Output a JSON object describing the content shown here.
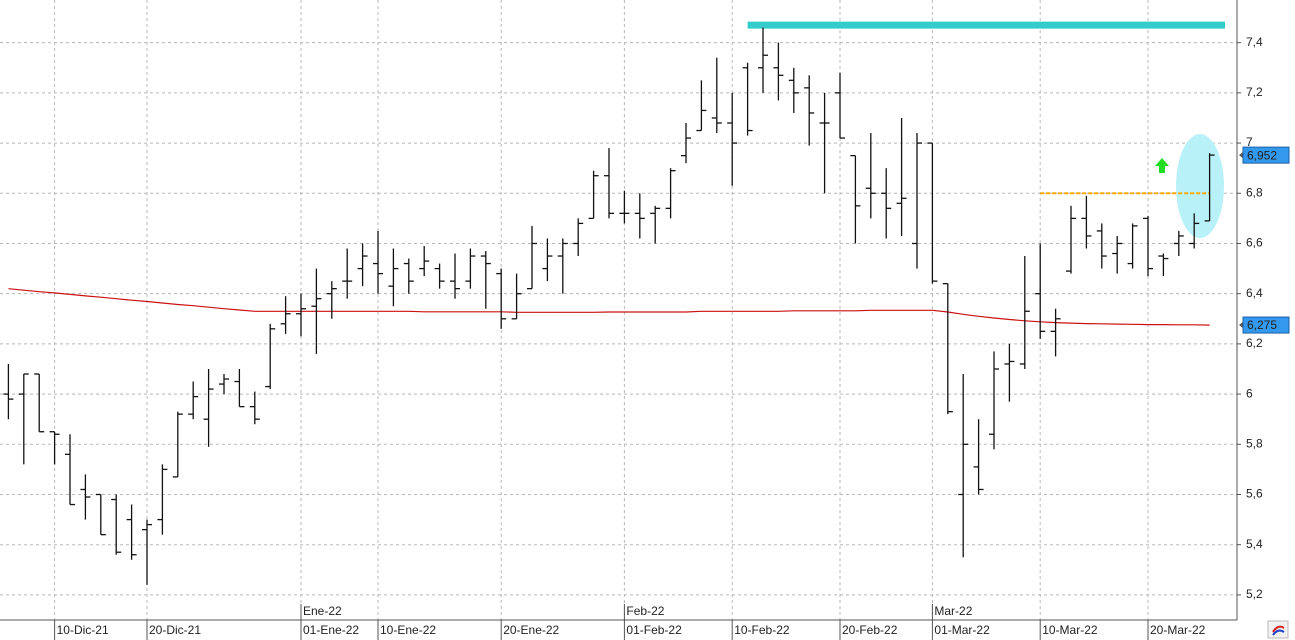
{
  "chart_data": {
    "type": "ohlc",
    "color": "#111111",
    "x": [
      "2021-12-07",
      "2021-12-08",
      "2021-12-09",
      "2021-12-10",
      "2021-12-13",
      "2021-12-14",
      "2021-12-15",
      "2021-12-16",
      "2021-12-17",
      "2021-12-20",
      "2021-12-21",
      "2021-12-22",
      "2021-12-23",
      "2021-12-24",
      "2021-12-27",
      "2021-12-28",
      "2021-12-29",
      "2021-12-30",
      "2021-12-31",
      "2022-01-03",
      "2022-01-04",
      "2022-01-05",
      "2022-01-06",
      "2022-01-07",
      "2022-01-10",
      "2022-01-11",
      "2022-01-12",
      "2022-01-13",
      "2022-01-14",
      "2022-01-17",
      "2022-01-18",
      "2022-01-19",
      "2022-01-20",
      "2022-01-21",
      "2022-01-24",
      "2022-01-25",
      "2022-01-26",
      "2022-01-27",
      "2022-01-28",
      "2022-01-31",
      "2022-02-01",
      "2022-02-02",
      "2022-02-03",
      "2022-02-04",
      "2022-02-07",
      "2022-02-08",
      "2022-02-09",
      "2022-02-10",
      "2022-02-11",
      "2022-02-14",
      "2022-02-15",
      "2022-02-16",
      "2022-02-17",
      "2022-02-18",
      "2022-02-21",
      "2022-02-22",
      "2022-02-23",
      "2022-02-24",
      "2022-02-25",
      "2022-02-28",
      "2022-03-01",
      "2022-03-02",
      "2022-03-03",
      "2022-03-04",
      "2022-03-07",
      "2022-03-08",
      "2022-03-09",
      "2022-03-10",
      "2022-03-11",
      "2022-03-14",
      "2022-03-15",
      "2022-03-16",
      "2022-03-17",
      "2022-03-18",
      "2022-03-21",
      "2022-03-22",
      "2022-03-23",
      "2022-03-24",
      "2022-03-25"
    ],
    "open": [
      6.0,
      6.0,
      6.08,
      5.85,
      5.76,
      5.62,
      5.6,
      5.58,
      5.5,
      5.46,
      5.5,
      5.67,
      5.92,
      5.9,
      6.04,
      6.05,
      5.95,
      6.03,
      6.28,
      6.32,
      6.35,
      6.4,
      6.45,
      6.5,
      6.52,
      6.43,
      6.52,
      6.5,
      6.5,
      6.45,
      6.45,
      6.55,
      6.48,
      6.3,
      6.42,
      6.5,
      6.55,
      6.6,
      6.7,
      6.87,
      6.72,
      6.72,
      6.72,
      6.74,
      6.95,
      7.05,
      7.1,
      7.08,
      7.3,
      7.3,
      7.3,
      7.25,
      7.22,
      7.08,
      7.2,
      6.95,
      6.82,
      6.8,
      6.76,
      6.6,
      7.0,
      6.44,
      5.6,
      5.71,
      5.84,
      6.12,
      6.12,
      6.4,
      6.25,
      6.49,
      6.7,
      6.65,
      6.56,
      6.52,
      6.7,
      6.55,
      6.6,
      6.6,
      6.69
    ],
    "high": [
      6.12,
      6.08,
      6.08,
      5.85,
      5.84,
      5.68,
      5.6,
      5.6,
      5.56,
      5.5,
      5.72,
      5.93,
      6.05,
      6.1,
      6.08,
      6.1,
      6.01,
      6.28,
      6.39,
      6.4,
      6.5,
      6.45,
      6.58,
      6.6,
      6.65,
      6.58,
      6.54,
      6.59,
      6.52,
      6.56,
      6.58,
      6.57,
      6.5,
      6.48,
      6.67,
      6.62,
      6.62,
      6.7,
      6.89,
      6.98,
      6.81,
      6.8,
      6.75,
      6.9,
      7.08,
      7.25,
      7.34,
      7.2,
      7.32,
      7.46,
      7.4,
      7.3,
      7.27,
      7.2,
      7.28,
      6.95,
      7.04,
      6.9,
      7.1,
      7.04,
      7.0,
      6.44,
      6.08,
      5.9,
      6.17,
      6.2,
      6.55,
      6.6,
      6.34,
      6.75,
      6.79,
      6.68,
      6.63,
      6.68,
      6.71,
      6.56,
      6.65,
      6.72,
      6.96
    ],
    "low": [
      5.9,
      5.72,
      5.85,
      5.72,
      5.56,
      5.5,
      5.44,
      5.36,
      5.34,
      5.24,
      5.44,
      5.67,
      5.9,
      5.79,
      6.0,
      5.95,
      5.88,
      6.02,
      6.24,
      6.23,
      6.16,
      6.3,
      6.38,
      6.43,
      6.4,
      6.35,
      6.4,
      6.47,
      6.42,
      6.38,
      6.42,
      6.34,
      6.26,
      6.3,
      6.42,
      6.45,
      6.4,
      6.55,
      6.7,
      6.7,
      6.68,
      6.62,
      6.6,
      6.7,
      6.92,
      7.05,
      7.04,
      6.83,
      7.03,
      7.2,
      7.17,
      7.12,
      6.99,
      6.8,
      7.02,
      6.6,
      6.7,
      6.62,
      6.63,
      6.5,
      6.44,
      5.92,
      5.35,
      5.6,
      5.78,
      5.97,
      6.1,
      6.22,
      6.15,
      6.48,
      6.58,
      6.5,
      6.48,
      6.5,
      6.47,
      6.47,
      6.55,
      6.58,
      6.69
    ],
    "close": [
      5.98,
      6.08,
      5.85,
      5.84,
      5.56,
      5.59,
      5.44,
      5.37,
      5.36,
      5.48,
      5.7,
      5.92,
      5.99,
      6.02,
      6.06,
      5.95,
      5.9,
      6.26,
      6.32,
      6.34,
      6.38,
      6.42,
      6.45,
      6.55,
      6.48,
      6.5,
      6.45,
      6.53,
      6.45,
      6.42,
      6.55,
      6.52,
      6.3,
      6.4,
      6.6,
      6.55,
      6.6,
      6.68,
      6.87,
      6.72,
      6.72,
      6.7,
      6.74,
      6.89,
      7.02,
      7.13,
      7.08,
      7.0,
      7.05,
      7.35,
      7.27,
      7.2,
      7.12,
      7.08,
      7.02,
      6.75,
      6.8,
      6.74,
      6.78,
      7.0,
      6.45,
      5.93,
      5.8,
      5.62,
      6.1,
      6.13,
      6.33,
      6.25,
      6.3,
      6.7,
      6.63,
      6.55,
      6.6,
      6.67,
      6.5,
      6.54,
      6.63,
      6.68,
      6.952
    ],
    "moving_average": {
      "color": "#cc1111",
      "values": [
        6.42,
        6.414,
        6.408,
        6.403,
        6.397,
        6.391,
        6.386,
        6.38,
        6.374,
        6.369,
        6.363,
        6.357,
        6.352,
        6.346,
        6.34,
        6.335,
        6.33,
        6.33,
        6.33,
        6.33,
        6.33,
        6.33,
        6.33,
        6.33,
        6.33,
        6.33,
        6.33,
        6.328,
        6.328,
        6.328,
        6.328,
        6.328,
        6.328,
        6.326,
        6.326,
        6.326,
        6.326,
        6.326,
        6.326,
        6.327,
        6.327,
        6.327,
        6.327,
        6.327,
        6.327,
        6.33,
        6.33,
        6.33,
        6.33,
        6.33,
        6.33,
        6.332,
        6.332,
        6.332,
        6.332,
        6.332,
        6.334,
        6.334,
        6.334,
        6.334,
        6.334,
        6.327,
        6.318,
        6.31,
        6.303,
        6.297,
        6.292,
        6.288,
        6.285,
        6.283,
        6.281,
        6.28,
        6.279,
        6.278,
        6.277,
        6.277,
        6.276,
        6.276,
        6.275
      ]
    },
    "levels": [
      {
        "value": 7.47,
        "from": "2022-02-11",
        "to": "2022-03-28",
        "color": "#33cccc",
        "style": "solid"
      },
      {
        "value": 6.8,
        "from": "2022-03-10",
        "to": "2022-03-25",
        "color": "#ffaa00",
        "style": "dashed"
      }
    ],
    "price_tags": [
      {
        "value": 6.952,
        "label": "6,952",
        "color": "#3399ee"
      },
      {
        "value": 6.275,
        "label": "6,275",
        "color": "#3399ee"
      }
    ],
    "xlim": [
      "2021-12-06",
      "2022-03-28"
    ],
    "xticks": [
      {
        "value": "2021-12-10",
        "label": "10-Dic-21"
      },
      {
        "value": "2021-12-20",
        "label": "20-Dic-21"
      },
      {
        "value": "2022-01-01",
        "label": "01-Ene-22"
      },
      {
        "value": "2022-01-10",
        "label": "10-Ene-22"
      },
      {
        "value": "2022-01-20",
        "label": "20-Ene-22"
      },
      {
        "value": "2022-02-01",
        "label": "01-Feb-22"
      },
      {
        "value": "2022-02-10",
        "label": "10-Feb-22"
      },
      {
        "value": "2022-02-20",
        "label": "20-Feb-22"
      },
      {
        "value": "2022-03-01",
        "label": "01-Mar-22"
      },
      {
        "value": "2022-03-10",
        "label": "10-Mar-22"
      },
      {
        "value": "2022-03-20",
        "label": "20-Mar-22"
      }
    ],
    "month_ticks": [
      {
        "value": "2022-01-01",
        "label": "Ene-22"
      },
      {
        "value": "2022-02-01",
        "label": "Feb-22"
      },
      {
        "value": "2022-03-01",
        "label": "Mar-22"
      }
    ],
    "ylim": [
      5.1,
      7.57
    ],
    "yticks": [
      {
        "value": 5.2,
        "label": "5,2"
      },
      {
        "value": 5.4,
        "label": "5,4"
      },
      {
        "value": 5.6,
        "label": "5,6"
      },
      {
        "value": 5.8,
        "label": "5,8"
      },
      6,
      {
        "value": 6.2,
        "label": "6,2"
      },
      {
        "value": 6.4,
        "label": "6,4"
      },
      {
        "value": 6.6,
        "label": "6,6"
      },
      {
        "value": 6.8,
        "label": "6,8"
      },
      7,
      {
        "value": 7.2,
        "label": "7,2"
      },
      {
        "value": 7.4,
        "label": "7,4"
      }
    ],
    "grid": true
  }
}
